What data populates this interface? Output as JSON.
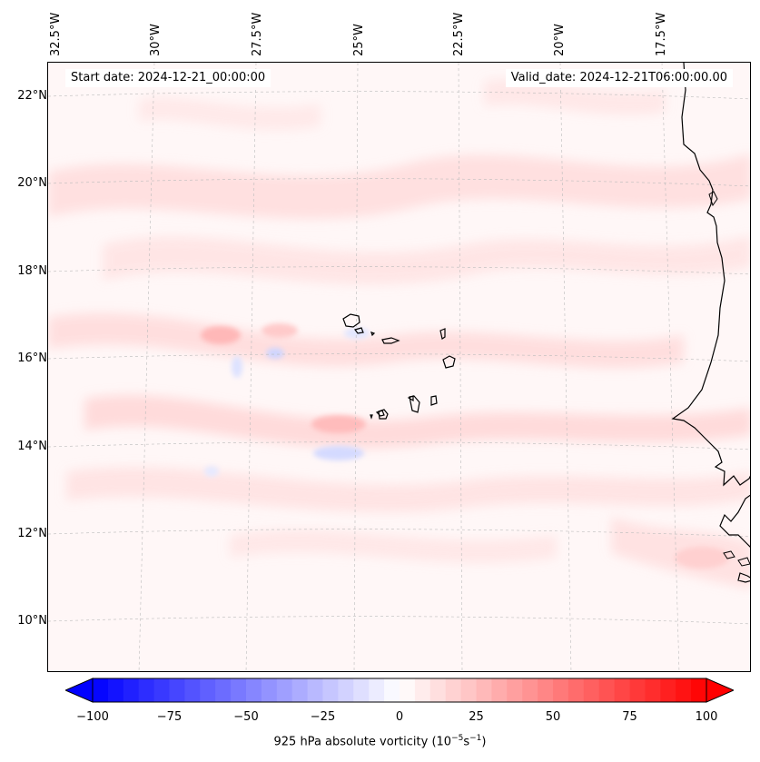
{
  "map": {
    "start_date": "Start date: 2024-12-21_00:00:00",
    "valid_date": "Valid_date: 2024-12-21T06:00:00.00",
    "lon_labels": [
      "32.5°W",
      "30°W",
      "27.5°W",
      "25°W",
      "22.5°W",
      "20°W",
      "17.5°W"
    ],
    "lat_labels": [
      "22°N",
      "20°N",
      "18°N",
      "16°N",
      "14°N",
      "12°N",
      "10°N"
    ],
    "colors": {
      "negative_max": "#0000ff",
      "positive_max": "#ff0000",
      "zero": "#ffffff",
      "coastline": "#000000"
    }
  },
  "colorbar": {
    "ticks": [
      "−100",
      "−75",
      "−50",
      "−25",
      "0",
      "25",
      "50",
      "75",
      "100"
    ],
    "range": [
      -100,
      100
    ],
    "label_main": "925 hPa absolute vorticity (10",
    "label_exp1": "−5",
    "label_mid": "s",
    "label_exp2": "−1",
    "label_end": ")"
  }
}
